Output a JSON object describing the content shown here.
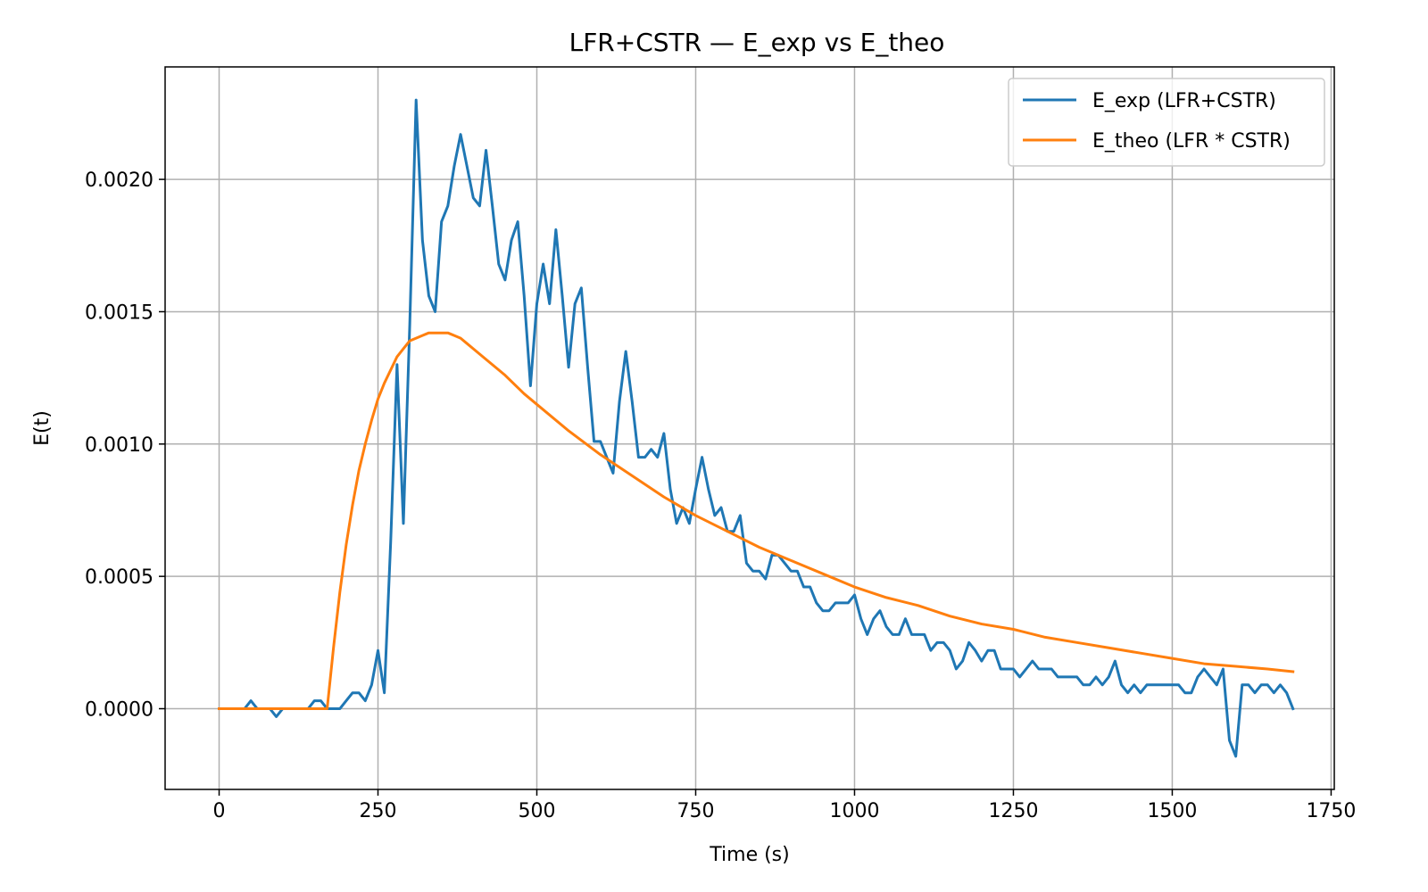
{
  "chart_data": {
    "type": "line",
    "title": "LFR+CSTR — E_exp vs E_theo",
    "xlabel": "Time (s)",
    "ylabel": "E(t)",
    "xlim": [
      -85,
      1755
    ],
    "ylim": [
      -0.000305,
      0.002425
    ],
    "xticks": [
      0,
      250,
      500,
      750,
      1000,
      1250,
      1500,
      1750
    ],
    "xtick_labels": [
      "0",
      "250",
      "500",
      "750",
      "1000",
      "1250",
      "1500",
      "1750"
    ],
    "yticks": [
      0.0,
      0.0005,
      0.001,
      0.0015,
      0.002
    ],
    "ytick_labels": [
      "0.0000",
      "0.0005",
      "0.0010",
      "0.0015",
      "0.0020"
    ],
    "grid": true,
    "legend_position": "top-right",
    "series": [
      {
        "name": "E_exp (LFR+CSTR)",
        "color": "#1f77b4",
        "points": [
          [
            0,
            0.0
          ],
          [
            10,
            0.0
          ],
          [
            20,
            0.0
          ],
          [
            30,
            0.0
          ],
          [
            40,
            0.0
          ],
          [
            50,
            3e-05
          ],
          [
            60,
            0.0
          ],
          [
            70,
            0.0
          ],
          [
            80,
            0.0
          ],
          [
            90,
            -3e-05
          ],
          [
            100,
            0.0
          ],
          [
            110,
            0.0
          ],
          [
            120,
            0.0
          ],
          [
            130,
            0.0
          ],
          [
            140,
            0.0
          ],
          [
            150,
            3e-05
          ],
          [
            160,
            3e-05
          ],
          [
            170,
            0.0
          ],
          [
            180,
            0.0
          ],
          [
            190,
            0.0
          ],
          [
            200,
            3e-05
          ],
          [
            210,
            6e-05
          ],
          [
            220,
            6e-05
          ],
          [
            230,
            3e-05
          ],
          [
            240,
            9e-05
          ],
          [
            250,
            0.00022
          ],
          [
            260,
            6e-05
          ],
          [
            270,
            0.00063
          ],
          [
            280,
            0.0013
          ],
          [
            290,
            0.0007
          ],
          [
            300,
            0.00145
          ],
          [
            310,
            0.0023
          ],
          [
            320,
            0.00177
          ],
          [
            330,
            0.00156
          ],
          [
            340,
            0.0015
          ],
          [
            350,
            0.00184
          ],
          [
            360,
            0.0019
          ],
          [
            370,
            0.00205
          ],
          [
            380,
            0.00217
          ],
          [
            390,
            0.00205
          ],
          [
            400,
            0.00193
          ],
          [
            410,
            0.0019
          ],
          [
            420,
            0.00211
          ],
          [
            430,
            0.0019
          ],
          [
            440,
            0.00168
          ],
          [
            450,
            0.00162
          ],
          [
            460,
            0.00177
          ],
          [
            470,
            0.00184
          ],
          [
            480,
            0.00156
          ],
          [
            490,
            0.00122
          ],
          [
            500,
            0.00153
          ],
          [
            510,
            0.00168
          ],
          [
            520,
            0.00153
          ],
          [
            530,
            0.00181
          ],
          [
            540,
            0.00156
          ],
          [
            550,
            0.00129
          ],
          [
            560,
            0.00153
          ],
          [
            570,
            0.00159
          ],
          [
            580,
            0.00129
          ],
          [
            590,
            0.00101
          ],
          [
            600,
            0.00101
          ],
          [
            610,
            0.00095
          ],
          [
            620,
            0.00089
          ],
          [
            630,
            0.00116
          ],
          [
            640,
            0.00135
          ],
          [
            650,
            0.00116
          ],
          [
            660,
            0.00095
          ],
          [
            670,
            0.00095
          ],
          [
            680,
            0.00098
          ],
          [
            690,
            0.00095
          ],
          [
            700,
            0.00104
          ],
          [
            710,
            0.00083
          ],
          [
            720,
            0.0007
          ],
          [
            730,
            0.00076
          ],
          [
            740,
            0.0007
          ],
          [
            750,
            0.00083
          ],
          [
            760,
            0.00095
          ],
          [
            770,
            0.00083
          ],
          [
            780,
            0.00073
          ],
          [
            790,
            0.00076
          ],
          [
            800,
            0.00067
          ],
          [
            810,
            0.00067
          ],
          [
            820,
            0.00073
          ],
          [
            830,
            0.00055
          ],
          [
            840,
            0.00052
          ],
          [
            850,
            0.00052
          ],
          [
            860,
            0.00049
          ],
          [
            870,
            0.00058
          ],
          [
            880,
            0.00058
          ],
          [
            890,
            0.00055
          ],
          [
            900,
            0.00052
          ],
          [
            910,
            0.00052
          ],
          [
            920,
            0.00046
          ],
          [
            930,
            0.00046
          ],
          [
            940,
            0.0004
          ],
          [
            950,
            0.00037
          ],
          [
            960,
            0.00037
          ],
          [
            970,
            0.0004
          ],
          [
            980,
            0.0004
          ],
          [
            990,
            0.0004
          ],
          [
            1000,
            0.00043
          ],
          [
            1010,
            0.00034
          ],
          [
            1020,
            0.00028
          ],
          [
            1030,
            0.00034
          ],
          [
            1040,
            0.00037
          ],
          [
            1050,
            0.00031
          ],
          [
            1060,
            0.00028
          ],
          [
            1070,
            0.00028
          ],
          [
            1080,
            0.00034
          ],
          [
            1090,
            0.00028
          ],
          [
            1100,
            0.00028
          ],
          [
            1110,
            0.00028
          ],
          [
            1120,
            0.00022
          ],
          [
            1130,
            0.00025
          ],
          [
            1140,
            0.00025
          ],
          [
            1150,
            0.00022
          ],
          [
            1160,
            0.00015
          ],
          [
            1170,
            0.00018
          ],
          [
            1180,
            0.00025
          ],
          [
            1190,
            0.00022
          ],
          [
            1200,
            0.00018
          ],
          [
            1210,
            0.00022
          ],
          [
            1220,
            0.00022
          ],
          [
            1230,
            0.00015
          ],
          [
            1240,
            0.00015
          ],
          [
            1250,
            0.00015
          ],
          [
            1260,
            0.00012
          ],
          [
            1270,
            0.00015
          ],
          [
            1280,
            0.00018
          ],
          [
            1290,
            0.00015
          ],
          [
            1300,
            0.00015
          ],
          [
            1310,
            0.00015
          ],
          [
            1320,
            0.00012
          ],
          [
            1330,
            0.00012
          ],
          [
            1340,
            0.00012
          ],
          [
            1350,
            0.00012
          ],
          [
            1360,
            9e-05
          ],
          [
            1370,
            9e-05
          ],
          [
            1380,
            0.00012
          ],
          [
            1390,
            9e-05
          ],
          [
            1400,
            0.00012
          ],
          [
            1410,
            0.00018
          ],
          [
            1420,
            9e-05
          ],
          [
            1430,
            6e-05
          ],
          [
            1440,
            9e-05
          ],
          [
            1450,
            6e-05
          ],
          [
            1460,
            9e-05
          ],
          [
            1470,
            9e-05
          ],
          [
            1480,
            9e-05
          ],
          [
            1490,
            9e-05
          ],
          [
            1500,
            9e-05
          ],
          [
            1510,
            9e-05
          ],
          [
            1520,
            6e-05
          ],
          [
            1530,
            6e-05
          ],
          [
            1540,
            0.00012
          ],
          [
            1550,
            0.00015
          ],
          [
            1560,
            0.00012
          ],
          [
            1570,
            9e-05
          ],
          [
            1580,
            0.00015
          ],
          [
            1590,
            -0.00012
          ],
          [
            1600,
            -0.00018
          ],
          [
            1610,
            9e-05
          ],
          [
            1620,
            9e-05
          ],
          [
            1630,
            6e-05
          ],
          [
            1640,
            9e-05
          ],
          [
            1650,
            9e-05
          ],
          [
            1660,
            6e-05
          ],
          [
            1670,
            9e-05
          ],
          [
            1680,
            6e-05
          ],
          [
            1690,
            0.0
          ]
        ]
      },
      {
        "name": "E_theo (LFR * CSTR)",
        "color": "#ff7f0e",
        "points": [
          [
            0,
            0.0
          ],
          [
            100,
            0.0
          ],
          [
            170,
            0.0
          ],
          [
            180,
            0.00023
          ],
          [
            190,
            0.00044
          ],
          [
            200,
            0.00062
          ],
          [
            210,
            0.00077
          ],
          [
            220,
            0.0009
          ],
          [
            230,
            0.001
          ],
          [
            240,
            0.00109
          ],
          [
            250,
            0.00117
          ],
          [
            260,
            0.00123
          ],
          [
            270,
            0.00128
          ],
          [
            280,
            0.00133
          ],
          [
            290,
            0.00136
          ],
          [
            300,
            0.00139
          ],
          [
            310,
            0.0014
          ],
          [
            320,
            0.00141
          ],
          [
            330,
            0.00142
          ],
          [
            340,
            0.00142
          ],
          [
            350,
            0.00142
          ],
          [
            360,
            0.00142
          ],
          [
            370,
            0.00141
          ],
          [
            380,
            0.0014
          ],
          [
            390,
            0.00138
          ],
          [
            400,
            0.00136
          ],
          [
            420,
            0.00132
          ],
          [
            450,
            0.00126
          ],
          [
            480,
            0.00119
          ],
          [
            500,
            0.00115
          ],
          [
            550,
            0.00105
          ],
          [
            600,
            0.00096
          ],
          [
            650,
            0.00088
          ],
          [
            700,
            0.0008
          ],
          [
            750,
            0.00073
          ],
          [
            800,
            0.00067
          ],
          [
            850,
            0.00061
          ],
          [
            900,
            0.00056
          ],
          [
            950,
            0.00051
          ],
          [
            1000,
            0.00046
          ],
          [
            1050,
            0.00042
          ],
          [
            1100,
            0.00039
          ],
          [
            1150,
            0.00035
          ],
          [
            1200,
            0.00032
          ],
          [
            1250,
            0.0003
          ],
          [
            1300,
            0.00027
          ],
          [
            1350,
            0.00025
          ],
          [
            1400,
            0.00023
          ],
          [
            1450,
            0.00021
          ],
          [
            1500,
            0.00019
          ],
          [
            1550,
            0.00017
          ],
          [
            1600,
            0.00016
          ],
          [
            1650,
            0.00015
          ],
          [
            1690,
            0.00014
          ]
        ]
      }
    ]
  }
}
